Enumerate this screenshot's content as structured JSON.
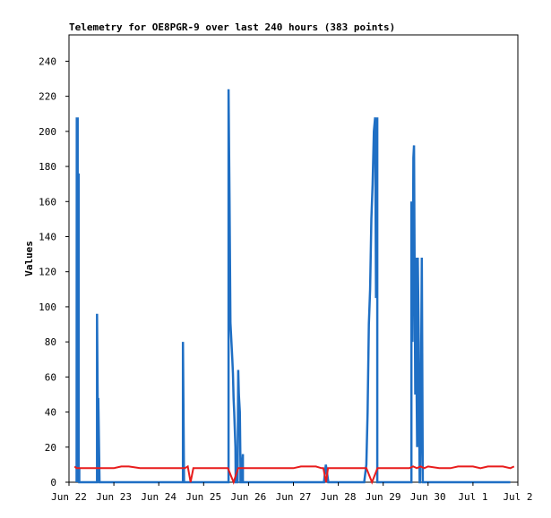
{
  "chart_data": {
    "type": "line",
    "title": "Telemetry for OE8PGR-9 over last 240 hours (383 points)",
    "xlabel": "",
    "ylabel": "Values",
    "xlim": [
      "2021-06-22 00:00",
      "2021-07-02 00:00"
    ],
    "ylim": [
      0,
      255
    ],
    "yticks": [
      0,
      20,
      40,
      60,
      80,
      100,
      120,
      140,
      160,
      180,
      200,
      220,
      240
    ],
    "xticks": [
      "Jun 22",
      "Jun 23",
      "Jun 24",
      "Jun 25",
      "Jun 26",
      "Jun 27",
      "Jun 28",
      "Jun 29",
      "Jun 30",
      "Jul 1",
      "Jul 2"
    ],
    "grid": false,
    "legend": "none",
    "series": [
      {
        "color": "#1f6fc4",
        "x": [
          "2021-06-22 04:05",
          "2021-06-22 04:10",
          "2021-06-22 04:10",
          "2021-06-22 04:40",
          "2021-06-22 04:40",
          "2021-06-22 05:10",
          "2021-06-22 05:10",
          "2021-06-22 05:30",
          "2021-06-22 05:30",
          "2021-06-22 15:00",
          "2021-06-22 15:00",
          "2021-06-22 15:40",
          "2021-06-22 15:40",
          "2021-06-22 16:20",
          "2021-06-22 16:20",
          "2021-06-24 12:55",
          "2021-06-24 12:55",
          "2021-06-24 13:30",
          "2021-06-24 13:30",
          "2021-06-25 13:20",
          "2021-06-25 13:20",
          "2021-06-25 13:50",
          "2021-06-25 14:20",
          "2021-06-25 14:50",
          "2021-06-25 15:20",
          "2021-06-25 15:40",
          "2021-06-25 16:00",
          "2021-06-25 16:20",
          "2021-06-25 16:40",
          "2021-06-25 17:00",
          "2021-06-25 17:10",
          "2021-06-25 18:10",
          "2021-06-25 18:30",
          "2021-06-25 18:50",
          "2021-06-25 19:20",
          "2021-06-25 19:40",
          "2021-06-25 19:40",
          "2021-06-25 19:55",
          "2021-06-25 20:05",
          "2021-06-25 20:05",
          "2021-06-25 21:00",
          "2021-06-25 21:00",
          "2021-06-27 15:20",
          "2021-06-27 16:20",
          "2021-06-27 17:20",
          "2021-06-27 18:40",
          "2021-06-27 18:40",
          "2021-06-28 13:50",
          "2021-06-28 13:50",
          "2021-06-28 15:00",
          "2021-06-28 15:40",
          "2021-06-28 16:20",
          "2021-06-28 17:00",
          "2021-06-28 17:40",
          "2021-06-28 18:20",
          "2021-06-28 19:00",
          "2021-06-28 19:40",
          "2021-06-28 20:10",
          "2021-06-28 20:30",
          "2021-06-28 20:50",
          "2021-06-28 20:50",
          "2021-06-28 21:20",
          "2021-06-28 21:20",
          "2021-06-29 15:05",
          "2021-06-29 15:05",
          "2021-06-29 15:40",
          "2021-06-29 16:10",
          "2021-06-29 16:30",
          "2021-06-29 16:50",
          "2021-06-29 17:10",
          "2021-06-29 17:30",
          "2021-06-29 17:50",
          "2021-06-29 18:10",
          "2021-06-29 18:30",
          "2021-06-29 19:00",
          "2021-06-29 19:30",
          "2021-06-29 19:40",
          "2021-06-29 20:05",
          "2021-06-29 20:40",
          "2021-06-29 21:10",
          "2021-06-29 21:10",
          "2021-06-29 21:40",
          "2021-06-29 21:40",
          "2021-07-01 20:00"
        ],
        "values": [
          0,
          208,
          0,
          208,
          0,
          176,
          0,
          8,
          0,
          0,
          96,
          0,
          48,
          0,
          0,
          0,
          80,
          0,
          0,
          0,
          224,
          160,
          91,
          80,
          70,
          62,
          48,
          40,
          30,
          20,
          0,
          0,
          64,
          50,
          40,
          10,
          0,
          0,
          10,
          0,
          16,
          0,
          0,
          0,
          10,
          0,
          0,
          0,
          0,
          10,
          40,
          90,
          110,
          150,
          170,
          200,
          208,
          105,
          150,
          208,
          0,
          0,
          0,
          0,
          160,
          80,
          185,
          192,
          120,
          50,
          128,
          60,
          20,
          128,
          80,
          0,
          0,
          30,
          128,
          0,
          0,
          0,
          0,
          0
        ]
      },
      {
        "color": "#e81c1c",
        "x": [
          "2021-06-22 03:00",
          "2021-06-22 04:00",
          "2021-06-22 05:00",
          "2021-06-22 07:00",
          "2021-06-22 12:00",
          "2021-06-22 16:00",
          "2021-06-22 20:00",
          "2021-06-23 00:00",
          "2021-06-23 04:00",
          "2021-06-23 06:00",
          "2021-06-23 08:00",
          "2021-06-23 14:00",
          "2021-06-23 16:00",
          "2021-06-23 20:00",
          "2021-06-24 04:00",
          "2021-06-24 08:00",
          "2021-06-24 12:00",
          "2021-06-24 14:00",
          "2021-06-24 15:30",
          "2021-06-24 17:00",
          "2021-06-24 18:30",
          "2021-06-25 00:00",
          "2021-06-25 06:00",
          "2021-06-25 12:00",
          "2021-06-25 13:00",
          "2021-06-25 16:00",
          "2021-06-25 18:30",
          "2021-06-25 20:00",
          "2021-06-26 00:00",
          "2021-06-26 06:00",
          "2021-06-26 12:00",
          "2021-06-26 18:00",
          "2021-06-27 00:00",
          "2021-06-27 04:00",
          "2021-06-27 08:00",
          "2021-06-27 12:00",
          "2021-06-27 15:00",
          "2021-06-27 16:00",
          "2021-06-27 17:30",
          "2021-06-27 18:30",
          "2021-06-28 00:00",
          "2021-06-28 06:00",
          "2021-06-28 12:00",
          "2021-06-28 14:00",
          "2021-06-28 15:00",
          "2021-06-28 18:00",
          "2021-06-28 21:00",
          "2021-06-28 22:30",
          "2021-06-29 06:00",
          "2021-06-29 12:00",
          "2021-06-29 14:00",
          "2021-06-29 16:00",
          "2021-06-29 18:00",
          "2021-06-29 20:00",
          "2021-06-29 22:00",
          "2021-06-30 00:00",
          "2021-06-30 06:00",
          "2021-06-30 12:00",
          "2021-06-30 16:00",
          "2021-06-30 20:00",
          "2021-07-01 00:00",
          "2021-07-01 04:00",
          "2021-07-01 08:00",
          "2021-07-01 12:00",
          "2021-07-01 16:00",
          "2021-07-01 20:00",
          "2021-07-01 22:00"
        ],
        "values": [
          9,
          8,
          8,
          8,
          8,
          8,
          8,
          8,
          9,
          9,
          9,
          8,
          8,
          8,
          8,
          8,
          8,
          8,
          9,
          0,
          8,
          8,
          8,
          8,
          8,
          0,
          8,
          8,
          8,
          8,
          8,
          8,
          8,
          9,
          9,
          9,
          8,
          8,
          0,
          8,
          8,
          8,
          8,
          8,
          8,
          0,
          8,
          8,
          8,
          8,
          8,
          9,
          8,
          9,
          8,
          9,
          8,
          8,
          9,
          9,
          9,
          8,
          9,
          9,
          9,
          8,
          9
        ]
      }
    ]
  }
}
